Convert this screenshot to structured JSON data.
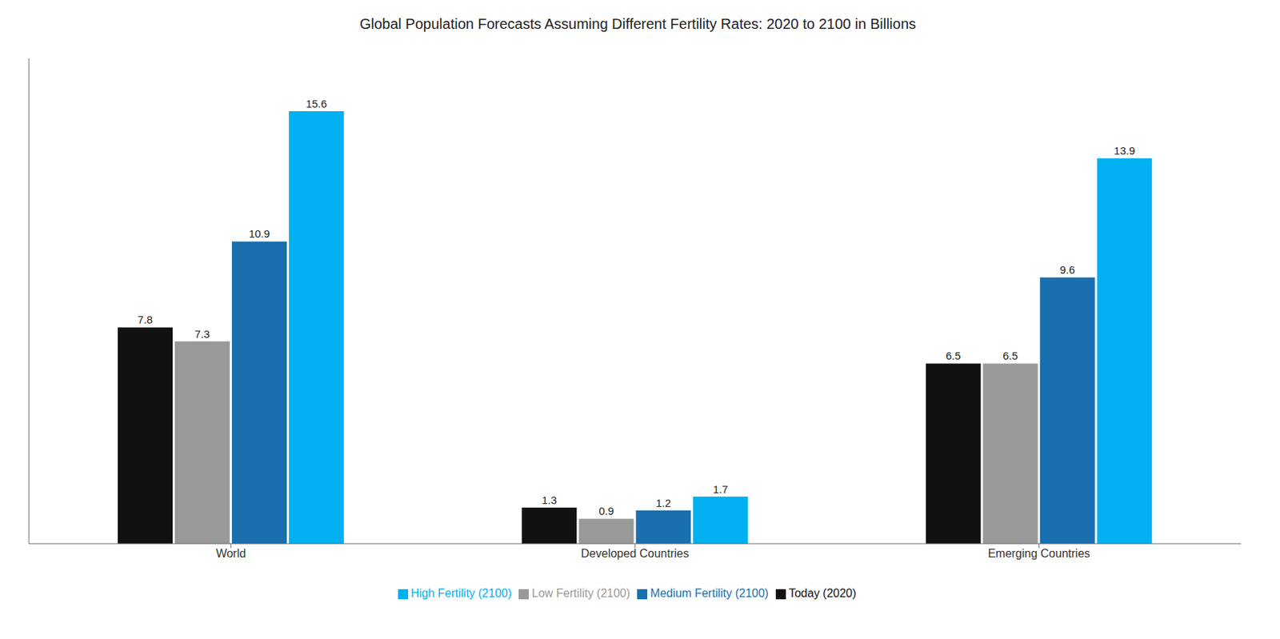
{
  "chart_data": {
    "type": "bar",
    "title": "Global Population Forecasts Assuming Different Fertility Rates: 2020 to 2100 in Billions",
    "categories": [
      "World",
      "Developed Countries",
      "Emerging Countries"
    ],
    "series": [
      {
        "name": "Today (2020)",
        "color": "#111111",
        "values": [
          7.8,
          1.3,
          6.5
        ]
      },
      {
        "name": "Low Fertility (2100)",
        "color": "#999999",
        "values": [
          7.3,
          0.9,
          6.5
        ]
      },
      {
        "name": "Medium Fertility (2100)",
        "color": "#1a6faf",
        "values": [
          10.9,
          1.2,
          9.6
        ]
      },
      {
        "name": "High Fertility (2100)",
        "color": "#00b0f0",
        "values": [
          15.6,
          1.7,
          13.9
        ]
      }
    ],
    "ylim": [
      0,
      17.5
    ],
    "grid": false,
    "legend": "bottom",
    "data_labels": true,
    "tick_labels": "x"
  }
}
